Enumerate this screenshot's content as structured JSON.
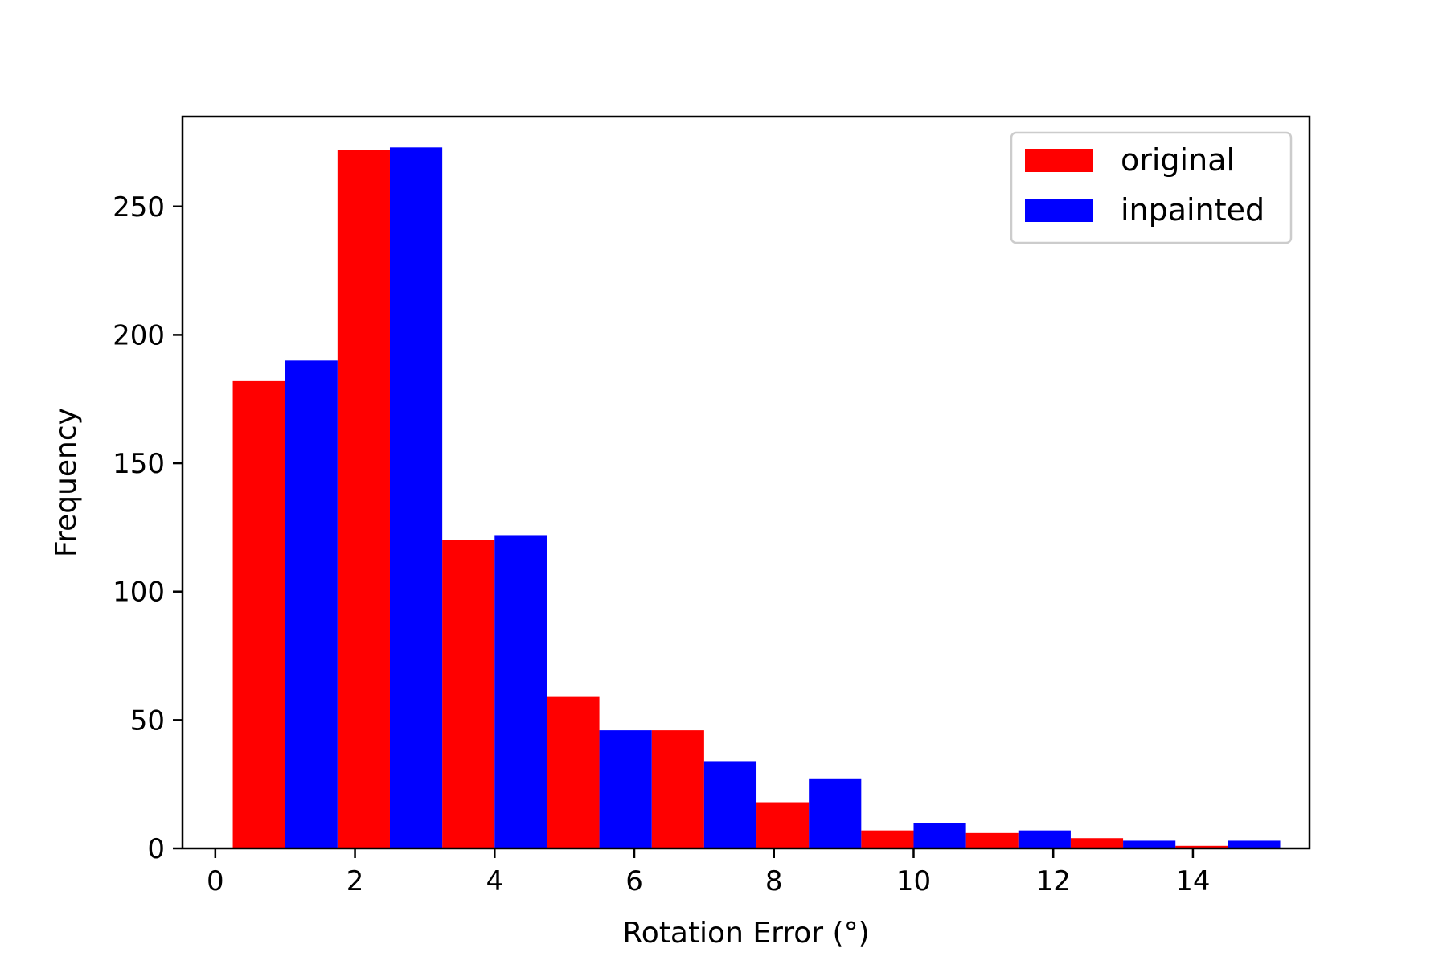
{
  "chart_data": {
    "type": "bar",
    "x": [
      1,
      2.5,
      4,
      5.5,
      7,
      8.5,
      10,
      11.5,
      13,
      14.5
    ],
    "series": [
      {
        "name": "original",
        "color": "#ff0000",
        "values": [
          182,
          272,
          120,
          59,
          46,
          18,
          7,
          6,
          4,
          1
        ]
      },
      {
        "name": "inpainted",
        "color": "#0000ff",
        "values": [
          190,
          273,
          122,
          46,
          34,
          27,
          10,
          7,
          3,
          3
        ]
      }
    ],
    "bin_width": 1.5,
    "title": "",
    "xlabel": "Rotation Error (°)",
    "ylabel": "Frequency",
    "xlim": [
      -0.47,
      15.67
    ],
    "ylim": [
      0,
      285
    ],
    "xticks": [
      0,
      2,
      4,
      6,
      8,
      10,
      12,
      14
    ],
    "yticks": [
      0,
      50,
      100,
      150,
      200,
      250
    ],
    "grid": false,
    "legend_position": "upper right"
  }
}
